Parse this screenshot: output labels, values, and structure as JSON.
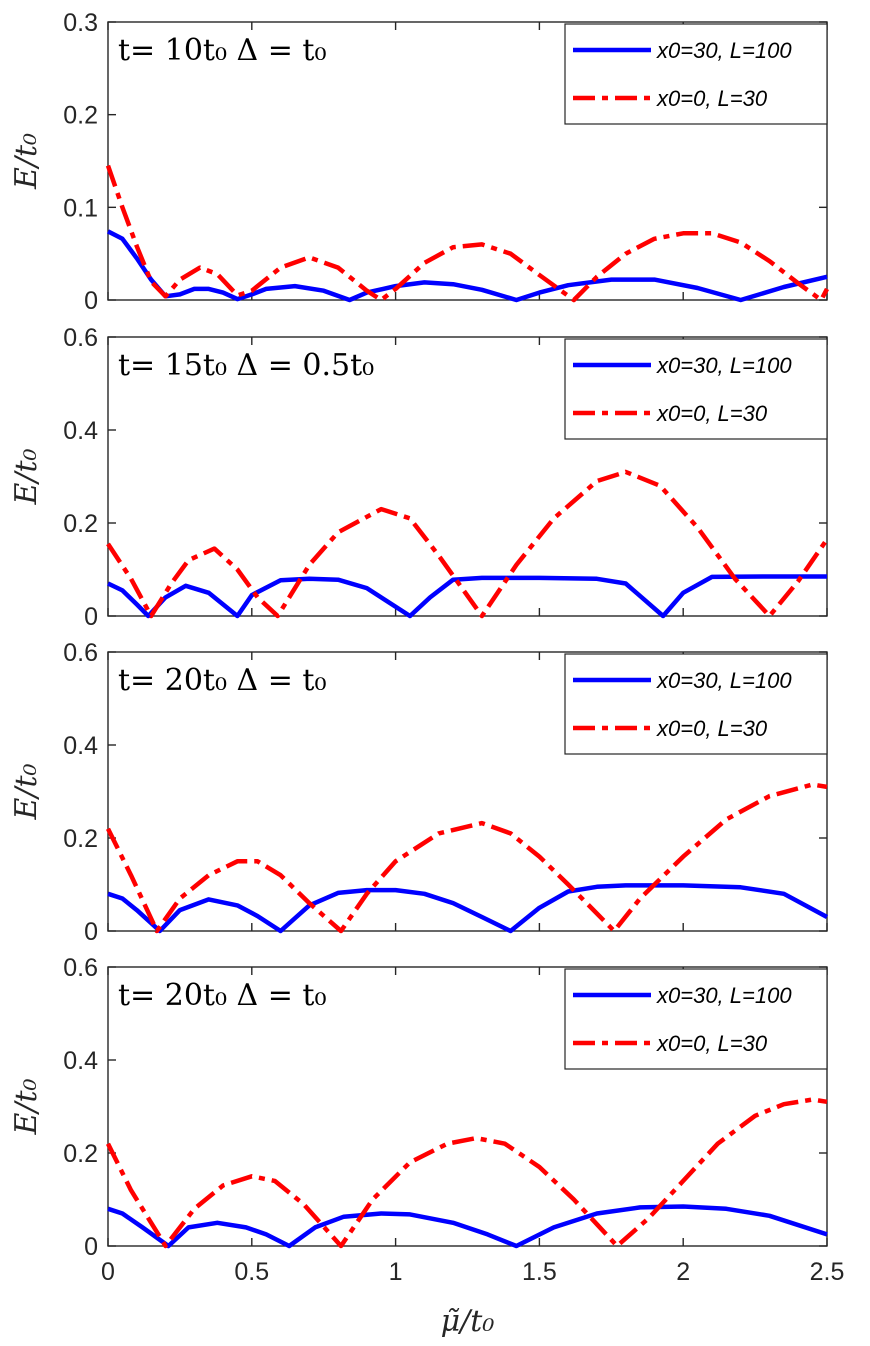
{
  "chart_data": [
    {
      "type": "line",
      "title": "t= 10t₀  Δ = t₀",
      "xlabel": "μ̃/t₀",
      "ylabel": "E/t₀",
      "xlim": [
        0,
        2.5
      ],
      "ylim": [
        0,
        0.3
      ],
      "xticks": [
        "0",
        "0.5",
        "1",
        "1.5",
        "2",
        "2.5"
      ],
      "yticks": [
        "0",
        "0.1",
        "0.2",
        "0.3"
      ],
      "legend_position": "top-right",
      "series": [
        {
          "name": "x0=30, L=100",
          "color": "#0000ff",
          "style": "solid",
          "x": [
            0,
            0.05,
            0.1,
            0.15,
            0.2,
            0.25,
            0.3,
            0.35,
            0.4,
            0.45,
            0.5,
            0.55,
            0.65,
            0.75,
            0.84,
            0.9,
            1.0,
            1.1,
            1.2,
            1.3,
            1.42,
            1.5,
            1.6,
            1.75,
            1.9,
            2.05,
            2.2,
            2.35,
            2.5
          ],
          "y": [
            0.074,
            0.066,
            0.045,
            0.022,
            0.004,
            0.006,
            0.012,
            0.012,
            0.008,
            0.001,
            0.006,
            0.012,
            0.015,
            0.01,
            0.0,
            0.008,
            0.015,
            0.019,
            0.017,
            0.011,
            0.0,
            0.008,
            0.016,
            0.022,
            0.022,
            0.013,
            0.0,
            0.014,
            0.025
          ]
        },
        {
          "name": "x0=0, L=30",
          "color": "#ff0000",
          "style": "dashdot",
          "x": [
            0,
            0.05,
            0.1,
            0.15,
            0.2,
            0.25,
            0.32,
            0.38,
            0.45,
            0.5,
            0.6,
            0.7,
            0.8,
            0.9,
            0.95,
            1.0,
            1.1,
            1.2,
            1.3,
            1.4,
            1.5,
            1.62,
            1.7,
            1.8,
            1.9,
            2.0,
            2.1,
            2.2,
            2.3,
            2.4,
            2.48,
            2.5
          ],
          "y": [
            0.145,
            0.1,
            0.058,
            0.02,
            0.004,
            0.022,
            0.035,
            0.028,
            0.005,
            0.01,
            0.035,
            0.046,
            0.035,
            0.01,
            0.0,
            0.012,
            0.04,
            0.057,
            0.06,
            0.05,
            0.027,
            0.0,
            0.025,
            0.05,
            0.066,
            0.072,
            0.072,
            0.062,
            0.042,
            0.018,
            0.0,
            0.012
          ]
        }
      ]
    },
    {
      "type": "line",
      "title": "t= 15t₀  Δ = 0.5t₀",
      "xlabel": "μ̃/t₀",
      "ylabel": "E/t₀",
      "xlim": [
        0,
        2.5
      ],
      "ylim": [
        0,
        0.6
      ],
      "xticks": [
        "0",
        "0.5",
        "1",
        "1.5",
        "2",
        "2.5"
      ],
      "yticks": [
        "0",
        "0.2",
        "0.4",
        "0.6"
      ],
      "legend_position": "top-right",
      "series": [
        {
          "name": "x0=30, L=100",
          "color": "#0000ff",
          "style": "solid",
          "x": [
            0,
            0.05,
            0.1,
            0.14,
            0.2,
            0.27,
            0.35,
            0.45,
            0.5,
            0.6,
            0.7,
            0.8,
            0.9,
            1.05,
            1.12,
            1.2,
            1.3,
            1.5,
            1.7,
            1.8,
            1.93,
            2.0,
            2.1,
            2.3,
            2.5
          ],
          "y": [
            0.07,
            0.055,
            0.025,
            0.0,
            0.04,
            0.065,
            0.05,
            0.0,
            0.045,
            0.077,
            0.08,
            0.078,
            0.06,
            0.0,
            0.04,
            0.078,
            0.082,
            0.082,
            0.08,
            0.07,
            0.0,
            0.05,
            0.084,
            0.085,
            0.085
          ]
        },
        {
          "name": "x0=0, L=30",
          "color": "#ff0000",
          "style": "dashdot",
          "x": [
            0,
            0.08,
            0.15,
            0.22,
            0.28,
            0.37,
            0.45,
            0.52,
            0.59,
            0.7,
            0.8,
            0.95,
            1.05,
            1.15,
            1.3,
            1.42,
            1.55,
            1.7,
            1.8,
            1.92,
            2.05,
            2.18,
            2.3,
            2.4,
            2.5
          ],
          "y": [
            0.155,
            0.08,
            0.0,
            0.07,
            0.12,
            0.145,
            0.1,
            0.04,
            0.0,
            0.11,
            0.18,
            0.23,
            0.21,
            0.13,
            0.0,
            0.11,
            0.21,
            0.29,
            0.31,
            0.28,
            0.19,
            0.08,
            0.0,
            0.075,
            0.165
          ]
        }
      ]
    },
    {
      "type": "line",
      "title": "t= 20t₀  Δ = t₀",
      "xlabel": "μ̃/t₀",
      "ylabel": "E/t₀",
      "xlim": [
        0,
        2.5
      ],
      "ylim": [
        0,
        0.6
      ],
      "xticks": [
        "0",
        "0.5",
        "1",
        "1.5",
        "2",
        "2.5"
      ],
      "yticks": [
        "0",
        "0.2",
        "0.4",
        "0.6"
      ],
      "legend_position": "top-right",
      "series": [
        {
          "name": "x0=30, L=100",
          "color": "#0000ff",
          "style": "solid",
          "x": [
            0,
            0.05,
            0.1,
            0.18,
            0.25,
            0.35,
            0.45,
            0.52,
            0.6,
            0.7,
            0.8,
            0.9,
            1.0,
            1.1,
            1.2,
            1.3,
            1.4,
            1.5,
            1.6,
            1.7,
            1.8,
            2.0,
            2.2,
            2.35,
            2.5
          ],
          "y": [
            0.08,
            0.07,
            0.045,
            0.0,
            0.045,
            0.068,
            0.055,
            0.032,
            0.0,
            0.055,
            0.082,
            0.088,
            0.088,
            0.08,
            0.06,
            0.03,
            0.0,
            0.05,
            0.085,
            0.095,
            0.098,
            0.098,
            0.094,
            0.08,
            0.03
          ]
        },
        {
          "name": "x0=0, L=30",
          "color": "#ff0000",
          "style": "dashdot",
          "x": [
            0,
            0.08,
            0.17,
            0.25,
            0.35,
            0.45,
            0.52,
            0.6,
            0.7,
            0.81,
            0.9,
            1.0,
            1.15,
            1.3,
            1.4,
            1.5,
            1.6,
            1.76,
            1.85,
            2.0,
            2.15,
            2.3,
            2.45,
            2.5
          ],
          "y": [
            0.22,
            0.12,
            0.0,
            0.07,
            0.12,
            0.15,
            0.15,
            0.12,
            0.06,
            0.0,
            0.08,
            0.15,
            0.21,
            0.232,
            0.21,
            0.16,
            0.1,
            0.0,
            0.07,
            0.16,
            0.24,
            0.29,
            0.315,
            0.31
          ]
        }
      ]
    },
    {
      "type": "line",
      "title": "t= 20t₀  Δ = t₀",
      "xlabel": "μ̃/t₀",
      "ylabel": "E/t₀",
      "xlim": [
        0,
        2.5
      ],
      "ylim": [
        0,
        0.6
      ],
      "xticks": [
        "0",
        "0.5",
        "1",
        "1.5",
        "2",
        "2.5"
      ],
      "yticks": [
        "0",
        "0.2",
        "0.4",
        "0.6"
      ],
      "legend_position": "top-right",
      "series": [
        {
          "name": "x0=30, L=100",
          "color": "#0000ff",
          "style": "solid",
          "x": [
            0,
            0.05,
            0.12,
            0.21,
            0.28,
            0.38,
            0.48,
            0.55,
            0.63,
            0.72,
            0.82,
            0.95,
            1.05,
            1.2,
            1.32,
            1.42,
            1.55,
            1.7,
            1.85,
            2.0,
            2.15,
            2.3,
            2.5
          ],
          "y": [
            0.08,
            0.07,
            0.04,
            0.0,
            0.04,
            0.05,
            0.04,
            0.025,
            0.0,
            0.04,
            0.063,
            0.07,
            0.068,
            0.05,
            0.025,
            0.0,
            0.04,
            0.07,
            0.083,
            0.085,
            0.08,
            0.065,
            0.025
          ]
        },
        {
          "name": "x0=0, L=30",
          "color": "#ff0000",
          "style": "dashdot",
          "x": [
            0,
            0.08,
            0.2,
            0.3,
            0.4,
            0.5,
            0.58,
            0.68,
            0.81,
            0.92,
            1.05,
            1.18,
            1.28,
            1.38,
            1.5,
            1.62,
            1.77,
            1.88,
            2.0,
            2.12,
            2.25,
            2.35,
            2.45,
            2.5
          ],
          "y": [
            0.22,
            0.12,
            0.0,
            0.08,
            0.13,
            0.15,
            0.14,
            0.09,
            0.0,
            0.1,
            0.18,
            0.22,
            0.232,
            0.22,
            0.17,
            0.1,
            0.0,
            0.06,
            0.14,
            0.22,
            0.28,
            0.305,
            0.315,
            0.31
          ]
        }
      ]
    }
  ]
}
